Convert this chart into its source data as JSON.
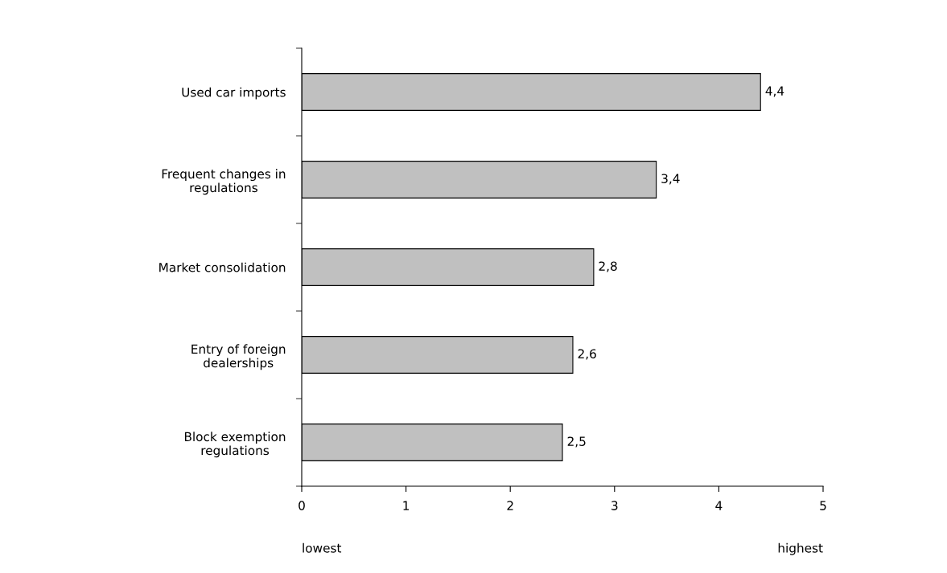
{
  "chart_data": {
    "type": "bar",
    "orientation": "horizontal",
    "categories": [
      "Used car imports",
      "Frequent changes in\nregulations",
      "Market consolidation",
      "Entry of foreign\ndealerships",
      "Block exemption\nregulations"
    ],
    "values": [
      4.4,
      3.4,
      2.8,
      2.6,
      2.5
    ],
    "value_labels": [
      "4,4",
      "3,4",
      "2,8",
      "2,6",
      "2,5"
    ],
    "color": "#c0c0c0",
    "xlim": [
      0,
      5
    ],
    "xticks": [
      0,
      1,
      2,
      3,
      4,
      5
    ],
    "grid": false,
    "legend": false,
    "annotations": [
      "lowest",
      "highest"
    ]
  }
}
